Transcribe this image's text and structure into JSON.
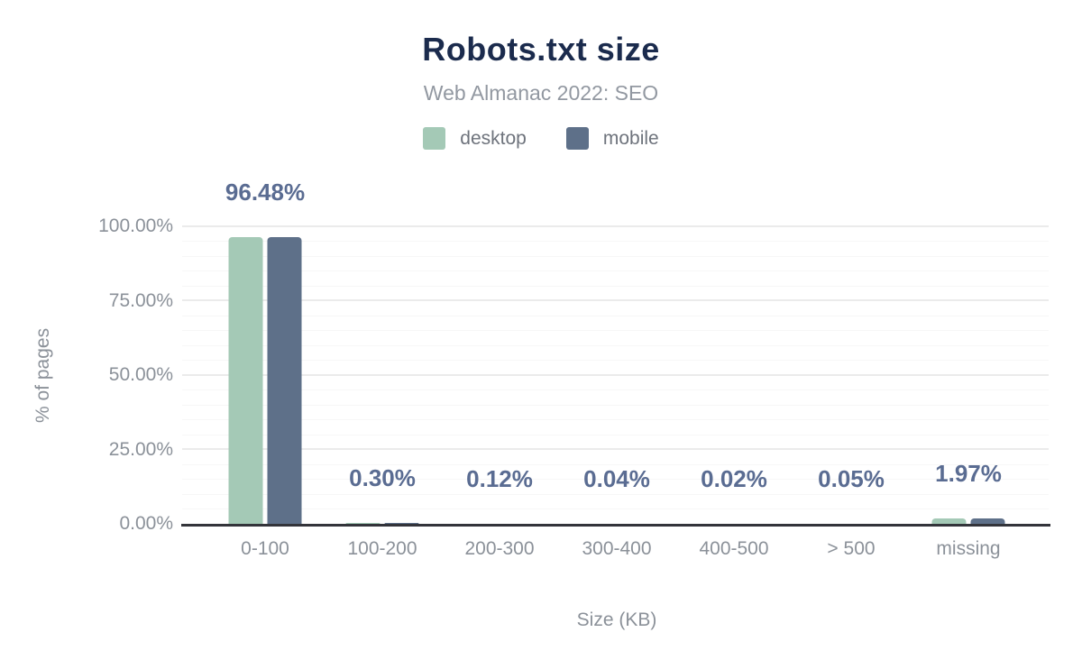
{
  "chart": {
    "title": "Robots.txt size",
    "subtitle": "Web Almanac 2022: SEO"
  },
  "chart_data": {
    "type": "bar",
    "title": "Robots.txt size",
    "subtitle": "Web Almanac 2022: SEO",
    "xlabel": "Size (KB)",
    "ylabel": "% of pages",
    "categories": [
      "0-100",
      "100-200",
      "200-300",
      "300-400",
      "400-500",
      "> 500",
      "missing"
    ],
    "series": [
      {
        "name": "desktop",
        "color": "#a4c9b6",
        "values": [
          96.48,
          0.3,
          0.12,
          0.04,
          0.02,
          0.05,
          1.97
        ]
      },
      {
        "name": "mobile",
        "color": "#5e7089",
        "values": [
          96.48,
          0.3,
          0.12,
          0.04,
          0.02,
          0.05,
          1.97
        ]
      }
    ],
    "data_labels": [
      "96.48%",
      "0.30%",
      "0.12%",
      "0.04%",
      "0.02%",
      "0.05%",
      "1.97%"
    ],
    "ylim": [
      0,
      100
    ],
    "yticks": [
      "0.00%",
      "25.00%",
      "50.00%",
      "75.00%",
      "100.00%"
    ],
    "ytick_values": [
      0,
      25,
      50,
      75,
      100
    ],
    "minor_grid_step_pct": 5,
    "grid": "on",
    "legend_position": "top"
  },
  "colors": {
    "title": "#1b2b4d",
    "subtitle": "#9298a1",
    "axis_text": "#8b9199",
    "legend_text": "#6e737c",
    "data_label": "#5a6c92",
    "axis_line": "#33343a",
    "grid_minor": "#f7f7f7",
    "grid_major": "#ebebeb",
    "background": "#ffffff"
  }
}
